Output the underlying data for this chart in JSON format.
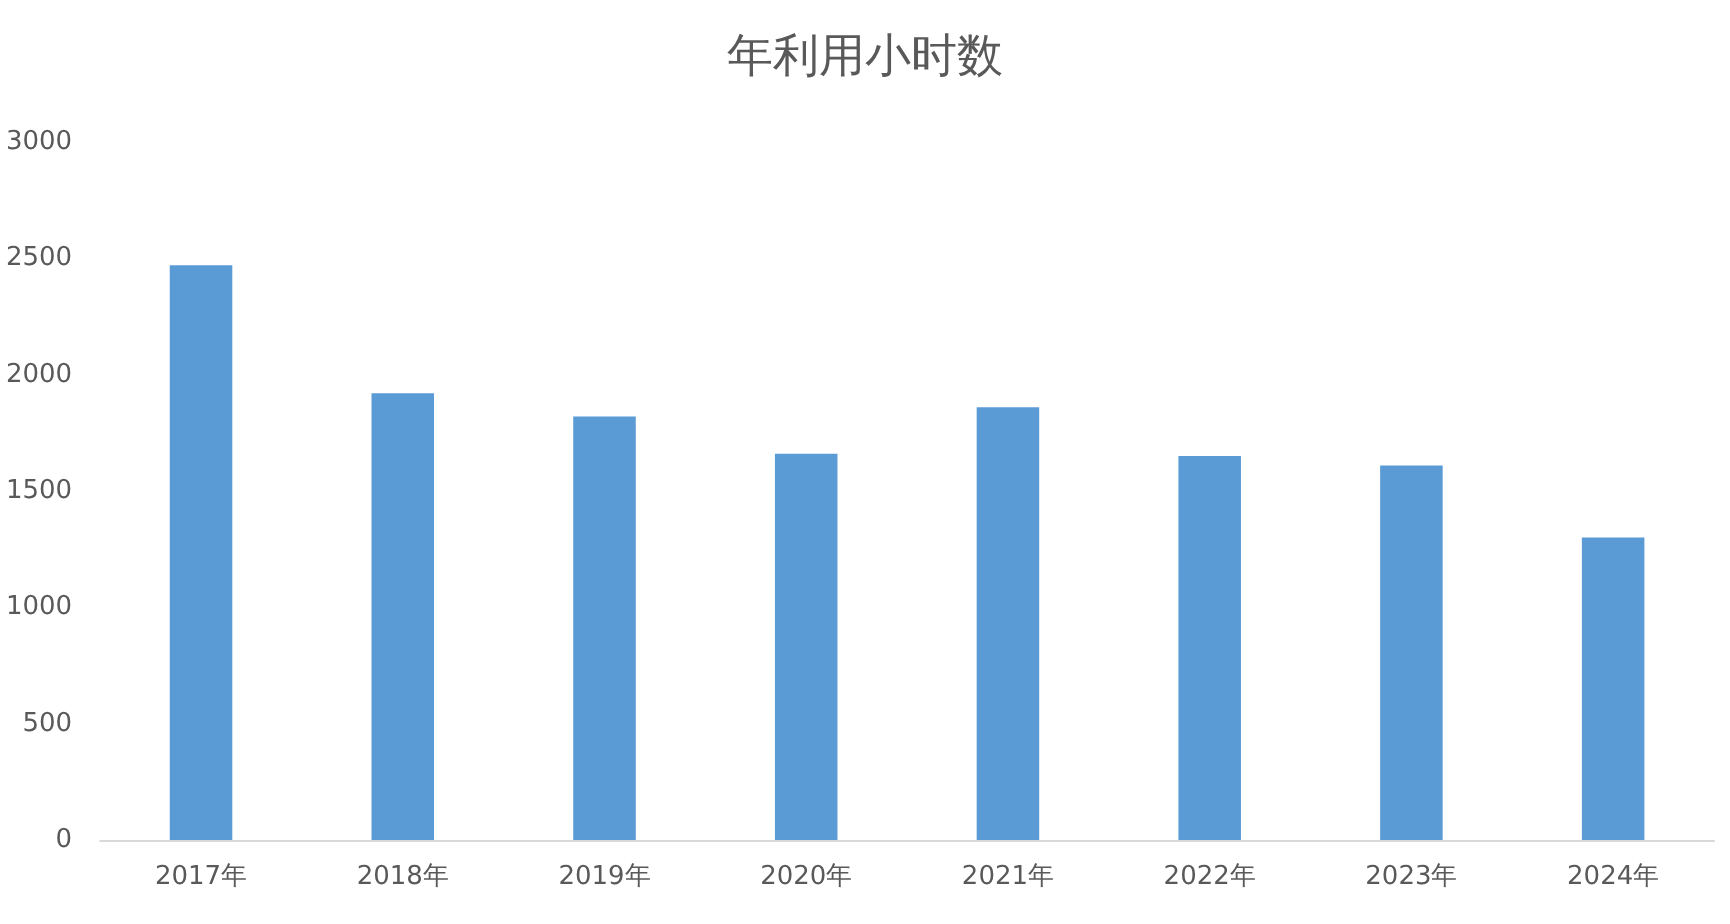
{
  "chart_data": {
    "type": "bar",
    "title": "年利用小时数",
    "categories": [
      "2017年",
      "2018年",
      "2019年",
      "2020年",
      "2021年",
      "2022年",
      "2023年",
      "2024年"
    ],
    "values": [
      2470,
      1920,
      1820,
      1660,
      1860,
      1650,
      1610,
      1300
    ],
    "color": "#5b9bd5",
    "ylim": [
      0,
      3000
    ],
    "yticks": [
      0,
      500,
      1000,
      1500,
      2000,
      2500,
      3000
    ],
    "grid": false
  }
}
